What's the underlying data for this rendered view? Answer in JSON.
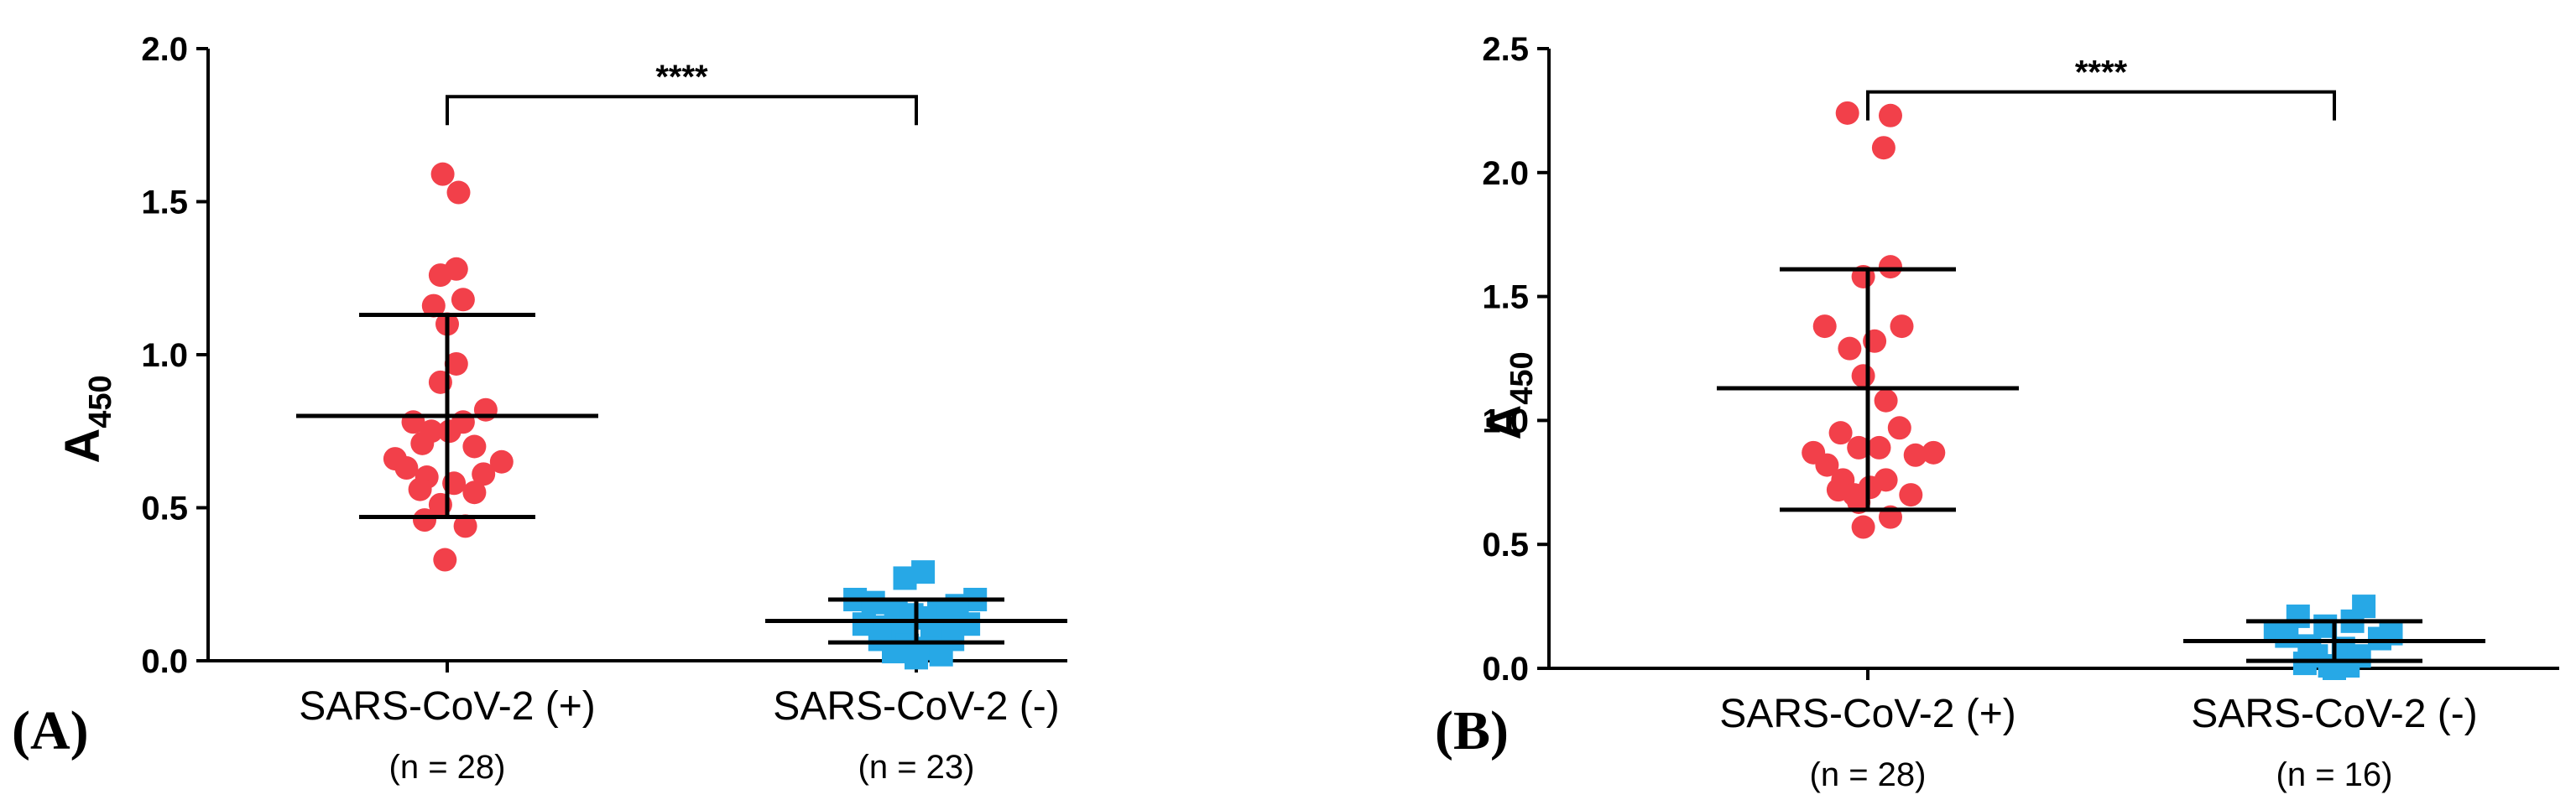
{
  "chart_data": [
    {
      "type": "scatter",
      "panel_label": "(A)",
      "ylabel": "A",
      "ylabel_subscript": "450",
      "ylim": [
        0,
        2.0
      ],
      "yticks": [
        "0.0",
        "0.5",
        "1.0",
        "1.5",
        "2.0"
      ],
      "groups": [
        {
          "name": "SARS-CoV-2 (+)",
          "n_label": "(n = 28)",
          "marker": "circle",
          "color": "#f2404a",
          "mean": 0.8,
          "sd_upper": 1.13,
          "sd_lower": 0.47,
          "values": [
            {
              "x": -0.02,
              "y": 1.59
            },
            {
              "x": 0.05,
              "y": 1.53
            },
            {
              "x": 0.04,
              "y": 1.28
            },
            {
              "x": -0.03,
              "y": 1.26
            },
            {
              "x": 0.07,
              "y": 1.18
            },
            {
              "x": -0.06,
              "y": 1.16
            },
            {
              "x": 0.0,
              "y": 1.1
            },
            {
              "x": 0.04,
              "y": 0.97
            },
            {
              "x": -0.03,
              "y": 0.91
            },
            {
              "x": 0.17,
              "y": 0.82
            },
            {
              "x": -0.15,
              "y": 0.78
            },
            {
              "x": 0.07,
              "y": 0.78
            },
            {
              "x": -0.07,
              "y": 0.75
            },
            {
              "x": 0.01,
              "y": 0.75
            },
            {
              "x": -0.11,
              "y": 0.71
            },
            {
              "x": 0.12,
              "y": 0.7
            },
            {
              "x": -0.23,
              "y": 0.66
            },
            {
              "x": 0.24,
              "y": 0.65
            },
            {
              "x": -0.18,
              "y": 0.63
            },
            {
              "x": 0.16,
              "y": 0.61
            },
            {
              "x": -0.09,
              "y": 0.6
            },
            {
              "x": 0.03,
              "y": 0.58
            },
            {
              "x": -0.12,
              "y": 0.56
            },
            {
              "x": 0.12,
              "y": 0.55
            },
            {
              "x": -0.03,
              "y": 0.51
            },
            {
              "x": -0.1,
              "y": 0.46
            },
            {
              "x": 0.08,
              "y": 0.44
            },
            {
              "x": -0.01,
              "y": 0.33
            }
          ]
        },
        {
          "name": "SARS-CoV-2 (-)",
          "n_label": "(n = 23)",
          "marker": "square",
          "color": "#27a8e6",
          "mean": 0.13,
          "sd_upper": 0.2,
          "sd_lower": 0.06,
          "values": [
            {
              "x": 0.03,
              "y": 0.29
            },
            {
              "x": -0.05,
              "y": 0.27
            },
            {
              "x": -0.27,
              "y": 0.2
            },
            {
              "x": 0.26,
              "y": 0.2
            },
            {
              "x": -0.19,
              "y": 0.19
            },
            {
              "x": 0.18,
              "y": 0.18
            },
            {
              "x": -0.09,
              "y": 0.16
            },
            {
              "x": 0.1,
              "y": 0.16
            },
            {
              "x": -0.02,
              "y": 0.15
            },
            {
              "x": 0.04,
              "y": 0.14
            },
            {
              "x": -0.23,
              "y": 0.12
            },
            {
              "x": 0.23,
              "y": 0.12
            },
            {
              "x": -0.14,
              "y": 0.11
            },
            {
              "x": 0.14,
              "y": 0.11
            },
            {
              "x": -0.06,
              "y": 0.09
            },
            {
              "x": 0.07,
              "y": 0.09
            },
            {
              "x": -0.16,
              "y": 0.07
            },
            {
              "x": 0.16,
              "y": 0.07
            },
            {
              "x": -0.04,
              "y": 0.05
            },
            {
              "x": 0.05,
              "y": 0.04
            },
            {
              "x": -0.1,
              "y": 0.03
            },
            {
              "x": 0.11,
              "y": 0.02
            },
            {
              "x": 0.0,
              "y": 0.01
            }
          ]
        }
      ],
      "significance": {
        "label": "****",
        "y": 1.92
      }
    },
    {
      "type": "scatter",
      "panel_label": "(B)",
      "ylabel": "A",
      "ylabel_subscript": "450",
      "ylim": [
        0,
        2.5
      ],
      "yticks": [
        "0.0",
        "0.5",
        "1.0",
        "1.5",
        "2.0",
        "2.5"
      ],
      "groups": [
        {
          "name": "SARS-CoV-2 (+)",
          "n_label": "(n = 28)",
          "marker": "circle",
          "color": "#f2404a",
          "mean": 1.13,
          "sd_upper": 1.61,
          "sd_lower": 0.64,
          "values": [
            {
              "x": -0.09,
              "y": 2.24
            },
            {
              "x": 0.1,
              "y": 2.23
            },
            {
              "x": 0.07,
              "y": 2.1
            },
            {
              "x": 0.1,
              "y": 1.62
            },
            {
              "x": -0.02,
              "y": 1.58
            },
            {
              "x": -0.19,
              "y": 1.38
            },
            {
              "x": 0.15,
              "y": 1.38
            },
            {
              "x": 0.03,
              "y": 1.32
            },
            {
              "x": -0.08,
              "y": 1.29
            },
            {
              "x": -0.02,
              "y": 1.18
            },
            {
              "x": 0.08,
              "y": 1.08
            },
            {
              "x": 0.14,
              "y": 0.97
            },
            {
              "x": -0.12,
              "y": 0.95
            },
            {
              "x": -0.24,
              "y": 0.87
            },
            {
              "x": 0.29,
              "y": 0.87
            },
            {
              "x": -0.04,
              "y": 0.89
            },
            {
              "x": 0.05,
              "y": 0.89
            },
            {
              "x": 0.21,
              "y": 0.86
            },
            {
              "x": -0.18,
              "y": 0.82
            },
            {
              "x": -0.11,
              "y": 0.76
            },
            {
              "x": 0.08,
              "y": 0.76
            },
            {
              "x": -0.13,
              "y": 0.72
            },
            {
              "x": 0.01,
              "y": 0.73
            },
            {
              "x": -0.06,
              "y": 0.7
            },
            {
              "x": 0.19,
              "y": 0.7
            },
            {
              "x": -0.04,
              "y": 0.67
            },
            {
              "x": 0.1,
              "y": 0.61
            },
            {
              "x": -0.02,
              "y": 0.57
            }
          ]
        },
        {
          "name": "SARS-CoV-2 (-)",
          "n_label": "(n = 16)",
          "marker": "square",
          "color": "#27a8e6",
          "mean": 0.11,
          "sd_upper": 0.19,
          "sd_lower": 0.03,
          "values": [
            {
              "x": 0.13,
              "y": 0.25
            },
            {
              "x": -0.16,
              "y": 0.21
            },
            {
              "x": 0.08,
              "y": 0.19
            },
            {
              "x": -0.04,
              "y": 0.17
            },
            {
              "x": -0.26,
              "y": 0.15
            },
            {
              "x": 0.25,
              "y": 0.14
            },
            {
              "x": -0.21,
              "y": 0.13
            },
            {
              "x": 0.2,
              "y": 0.12
            },
            {
              "x": -0.11,
              "y": 0.09
            },
            {
              "x": 0.04,
              "y": 0.08
            },
            {
              "x": -0.08,
              "y": 0.05
            },
            {
              "x": 0.11,
              "y": 0.05
            },
            {
              "x": -0.13,
              "y": 0.02
            },
            {
              "x": -0.02,
              "y": 0.01
            },
            {
              "x": 0.06,
              "y": 0.01
            },
            {
              "x": 0.0,
              "y": 0.0
            }
          ]
        }
      ],
      "significance": {
        "label": "****",
        "y": 2.42
      }
    }
  ]
}
